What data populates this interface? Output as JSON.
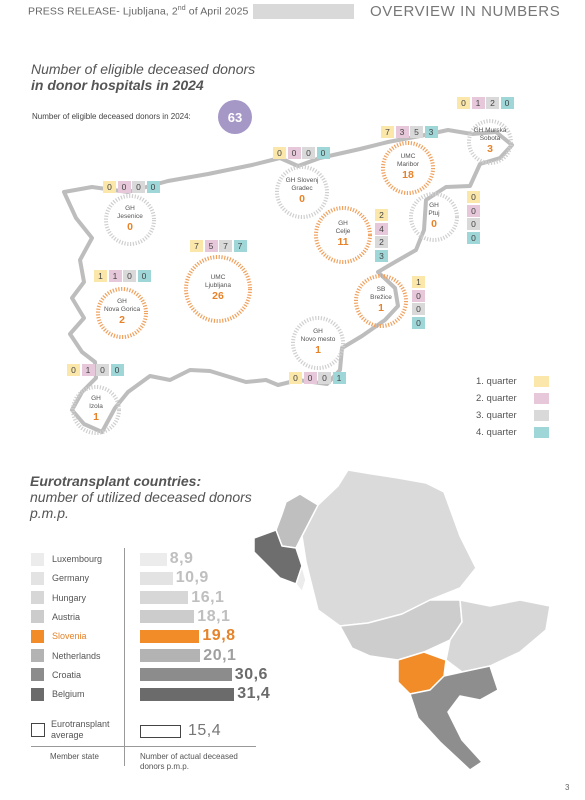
{
  "header": {
    "press_prefix": "PRESS RELEASE- Ljubljana, 2",
    "press_sup": "nd",
    "press_suffix": " of April 2025",
    "section": "OVERVIEW IN NUMBERS"
  },
  "donors": {
    "title_line1": "Number of eligible deceased donors",
    "title_line2": "in donor hospitals in 2024",
    "total_label": "Number of eligible deceased donors in  2024:",
    "total_value": "63",
    "hospitals": [
      {
        "id": "murska-sobota",
        "name": [
          "GH Murska",
          "Sobota"
        ],
        "total": "3",
        "quarters": [
          "0",
          "1",
          "2",
          "0"
        ]
      },
      {
        "id": "maribor",
        "name": [
          "UMC",
          "Maribor"
        ],
        "total": "18",
        "quarters": [
          "7",
          "3",
          "5",
          "3"
        ]
      },
      {
        "id": "slovenj-gradec",
        "name": [
          "GH Slovenj",
          "Gradec"
        ],
        "total": "0",
        "quarters": [
          "0",
          "0",
          "0",
          "0"
        ]
      },
      {
        "id": "jesenice",
        "name": [
          "GH",
          "Jesenice"
        ],
        "total": "0",
        "quarters": [
          "0",
          "0",
          "0",
          "0"
        ]
      },
      {
        "id": "ptuj",
        "name": [
          "GH",
          "Ptuj"
        ],
        "total": "0",
        "quarters": [
          "0",
          "0",
          "0",
          "0"
        ]
      },
      {
        "id": "celje",
        "name": [
          "GH",
          "Celje"
        ],
        "total": "11",
        "quarters": [
          "2",
          "4",
          "2",
          "3"
        ]
      },
      {
        "id": "ljubljana",
        "name": [
          "UMC",
          "Ljubljana"
        ],
        "total": "26",
        "quarters": [
          "7",
          "5",
          "7",
          "7"
        ]
      },
      {
        "id": "nova-gorica",
        "name": [
          "GH",
          "Nova Gorica"
        ],
        "total": "2",
        "quarters": [
          "1",
          "1",
          "0",
          "0"
        ]
      },
      {
        "id": "brezice",
        "name": [
          "SB",
          "Brežice"
        ],
        "total": "1",
        "quarters": [
          "1",
          "0",
          "0",
          "0"
        ]
      },
      {
        "id": "novo-mesto",
        "name": [
          "GH",
          "Novo mesto"
        ],
        "total": "1",
        "quarters": [
          "0",
          "0",
          "0",
          "1"
        ]
      },
      {
        "id": "izola",
        "name": [
          "GH",
          "Izola"
        ],
        "total": "1",
        "quarters": [
          "0",
          "1",
          "0",
          "0"
        ]
      }
    ],
    "legend": [
      {
        "label": "1. quarter",
        "color": "#fbe7a9"
      },
      {
        "label": "2. quarter",
        "color": "#e7c8da"
      },
      {
        "label": "3. quarter",
        "color": "#d9d9d9"
      },
      {
        "label": "4. quarter",
        "color": "#9fd6d8"
      }
    ]
  },
  "eurotransplant": {
    "title_line1": "Eurotransplant countries:",
    "title_line2": "number of utilized deceased donors",
    "title_line3": "p.m.p.",
    "countries": [
      {
        "name": "Luxembourg",
        "value": 8.9,
        "label": "8,9",
        "color": "#ececec"
      },
      {
        "name": "Germany",
        "value": 10.9,
        "label": "10,9",
        "color": "#e3e3e3"
      },
      {
        "name": "Hungary",
        "value": 16.1,
        "label": "16,1",
        "color": "#d7d7d7"
      },
      {
        "name": "Austria",
        "value": 18.1,
        "label": "18,1",
        "color": "#cccccc"
      },
      {
        "name": "Slovenia",
        "value": 19.8,
        "label": "19,8",
        "color": "#f28c28"
      },
      {
        "name": "Netherlands",
        "value": 20.1,
        "label": "20,1",
        "color": "#b3b3b3"
      },
      {
        "name": "Croatia",
        "value": 30.6,
        "label": "30,6",
        "color": "#8c8c8c"
      },
      {
        "name": "Belgium",
        "value": 31.4,
        "label": "31,4",
        "color": "#6b6b6b"
      }
    ],
    "average_label_line1": "Eurotransplant",
    "average_label_line2": "average",
    "average_value": 15.4,
    "average_label": "15,4",
    "footer_left": "Member state",
    "footer_right_line1": "Number of actual deceased",
    "footer_right_line2": "donors p.m.p."
  },
  "page_number": "3"
}
